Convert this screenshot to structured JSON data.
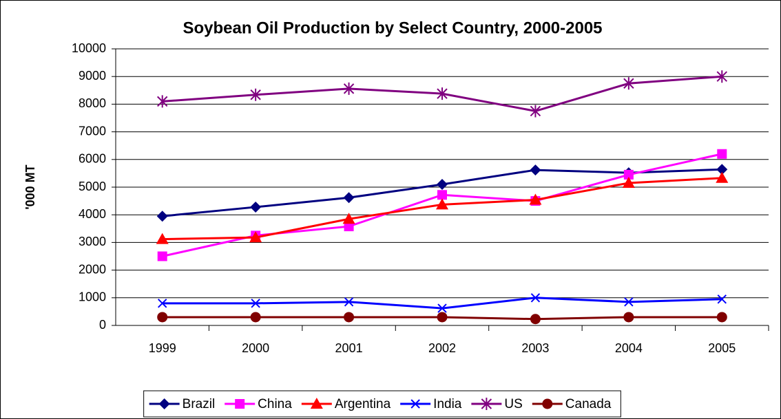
{
  "chart_data": {
    "type": "line",
    "title": "Soybean Oil Production by Select Country, 2000-2005",
    "y_label": "'000 MT",
    "categories": [
      "1999",
      "2000",
      "2001",
      "2002",
      "2003",
      "2004",
      "2005"
    ],
    "series": [
      {
        "name": "Brazil",
        "color": "#000080",
        "marker": "diamond",
        "values": [
          3950,
          4280,
          4620,
          5100,
          5620,
          5520,
          5640
        ]
      },
      {
        "name": "China",
        "color": "#ff00ff",
        "marker": "square",
        "values": [
          2500,
          3250,
          3580,
          4720,
          4500,
          5450,
          6200
        ]
      },
      {
        "name": "Argentina",
        "color": "#ff0000",
        "marker": "triangle",
        "values": [
          3120,
          3180,
          3850,
          4370,
          4540,
          5150,
          5330
        ]
      },
      {
        "name": "India",
        "color": "#0000ff",
        "marker": "x",
        "values": [
          800,
          800,
          850,
          620,
          1000,
          850,
          950
        ]
      },
      {
        "name": "US",
        "color": "#800080",
        "marker": "star",
        "values": [
          8100,
          8340,
          8560,
          8380,
          7750,
          8750,
          9000
        ]
      },
      {
        "name": "Canada",
        "color": "#800000",
        "marker": "circle",
        "values": [
          300,
          300,
          300,
          300,
          230,
          300,
          300
        ]
      }
    ],
    "ylim": [
      0,
      10000
    ],
    "yticks": [
      0,
      1000,
      2000,
      3000,
      4000,
      5000,
      6000,
      7000,
      8000,
      9000,
      10000
    ],
    "grid": true,
    "legend": "bottom"
  }
}
